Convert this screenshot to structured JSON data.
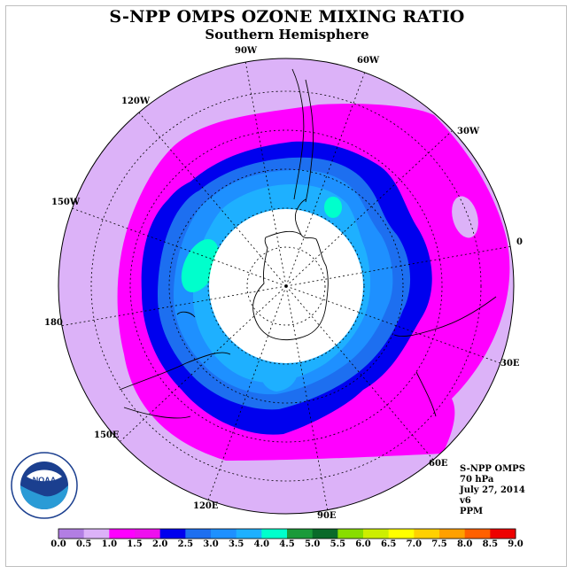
{
  "title": "S-NPP OMPS OZONE MIXING RATIO",
  "subtitle": "Southern Hemisphere",
  "longitude_labels": {
    "w90": "90W",
    "w60": "60W",
    "w30": "30W",
    "w120": "120W",
    "w150": "150W",
    "zero": "0",
    "d180": "180",
    "e30": "30E",
    "e60": "60E",
    "e90": "90E",
    "e120": "120E",
    "e150": "150E"
  },
  "info": {
    "instrument": "S-NPP OMPS",
    "level": "70 hPa",
    "date": "July 27, 2014",
    "version": "v6",
    "units": "PPM"
  },
  "logo": {
    "text": "NOAA",
    "ring_text": "NATIONAL OCEANIC AND ATMOSPHERIC ADMINISTRATION U.S. DEPARTMENT OF COMMERCE"
  },
  "colorbar": {
    "ticks": [
      "0.0",
      "0.5",
      "1.0",
      "1.5",
      "2.0",
      "2.5",
      "3.0",
      "3.5",
      "4.0",
      "4.5",
      "5.0",
      "5.5",
      "6.0",
      "6.5",
      "7.0",
      "7.5",
      "8.0",
      "8.5",
      "9.0"
    ],
    "colors": [
      "#b27ee3",
      "#dcb2f8",
      "#ff00ff",
      "#ee10ee",
      "#0000ee",
      "#1d6ff0",
      "#1e90ff",
      "#1eb0ff",
      "#00ffcc",
      "#1a9a3a",
      "#0a6a2a",
      "#88dd00",
      "#ccee00",
      "#ffff00",
      "#ffd000",
      "#ffa000",
      "#ff6000",
      "#ee0000",
      "#8b5a3a"
    ]
  },
  "map_colors": {
    "outer": "#dcb2f8",
    "band_1_0": "#ff00ff",
    "band_1_5": "#0000ee",
    "band_2_0": "#1d6ff0",
    "band_2_5": "#1e90ff",
    "band_3_0": "#1eb0ff",
    "band_3_5": "#00ffcc",
    "polar_night": "#ffffff"
  }
}
